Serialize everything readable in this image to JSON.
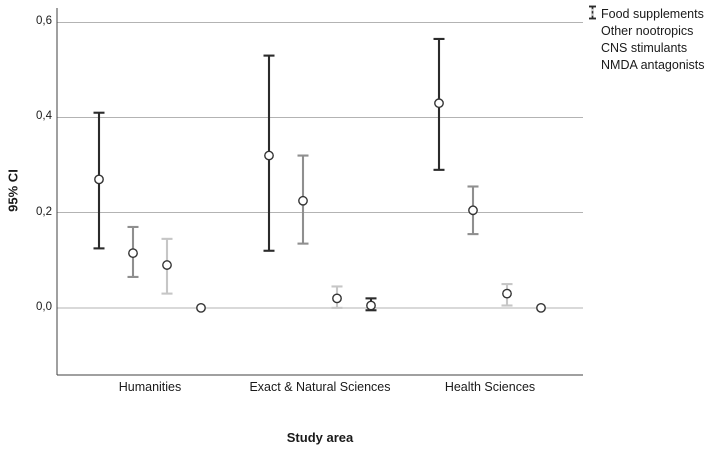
{
  "chart_data": {
    "type": "errorbar",
    "title": "",
    "ylabel": "95% CI",
    "xlabel": "Study area",
    "categories": [
      "Humanities",
      "Exact & Natural Sciences",
      "Health Sciences"
    ],
    "y_ticks": [
      {
        "value": 0.6,
        "label": "0,6"
      },
      {
        "value": 0.4,
        "label": "0,4"
      },
      {
        "value": 0.2,
        "label": "0,2"
      },
      {
        "value": 0.0,
        "label": "0,0"
      }
    ],
    "ylim": [
      -0.141,
      0.63
    ],
    "grid": "horizontal-only",
    "legend_position": "outside-top-right",
    "axis_color": "#404040",
    "gridline_color": "#b3b3b3",
    "marker": {
      "shape": "circle",
      "fill": "#ffffff",
      "stroke": "#333333"
    },
    "series": [
      {
        "name": "Food supplements",
        "color": "#2b2b2b",
        "line_style": "solid",
        "values": [
          0.27,
          0.32,
          0.43
        ],
        "ci_low": [
          0.125,
          0.12,
          0.29
        ],
        "ci_high": [
          0.41,
          0.53,
          0.565
        ]
      },
      {
        "name": "Other nootropics",
        "color": "#8f8f8f",
        "line_style": "solid",
        "values": [
          0.115,
          0.225,
          0.205
        ],
        "ci_low": [
          0.065,
          0.135,
          0.155
        ],
        "ci_high": [
          0.17,
          0.32,
          0.255
        ]
      },
      {
        "name": "CNS stimulants",
        "color": "#c6c6c6",
        "line_style": "solid",
        "values": [
          0.09,
          0.02,
          0.03
        ],
        "ci_low": [
          0.03,
          0.0,
          0.005
        ],
        "ci_high": [
          0.145,
          0.045,
          0.05
        ]
      },
      {
        "name": "NMDA antagonists",
        "color": "#2b2b2b",
        "line_style": "dashed",
        "values": [
          0.0,
          0.005,
          0.0
        ],
        "ci_low": [
          0.0,
          -0.005,
          0.0
        ],
        "ci_high": [
          0.0,
          0.02,
          0.0
        ]
      }
    ]
  }
}
